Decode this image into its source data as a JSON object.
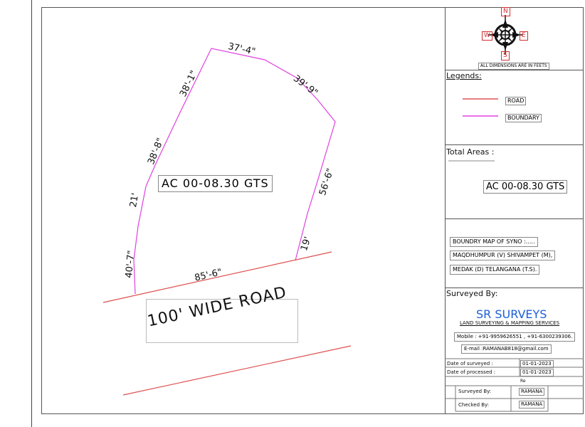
{
  "compass": {
    "north": "N",
    "south": "S",
    "east": "E",
    "west": "W",
    "note": "ALL DIMENSIONS ARE IN FEETS"
  },
  "legend": {
    "title": "Legends:",
    "items": [
      {
        "label": "ROAD",
        "color": "#e05050"
      },
      {
        "label": "BOUNDARY",
        "color": "#e040e0"
      }
    ]
  },
  "total_areas": {
    "title": "Total Areas :",
    "value": "AC 00-08.30 GTS"
  },
  "survey_info": {
    "lines": [
      "BOUNDRY MAP OF SYNO :.....",
      "MAQDHUMPUR (V) SHIVAMPET (M),",
      "MEDAK (D) TELANGANA (T.S)."
    ]
  },
  "surveyor": {
    "title": "Surveyed By:",
    "company": "SR SURVEYS",
    "tagline": "LAND SURVEYING & MAPPING SERVICES",
    "mobile": "Mobile : +91-9959626551 , +91-6300239306.",
    "email": "E-mail :RAMANAB818@gmail.com"
  },
  "details": [
    {
      "label": "Date of surveyed :",
      "value": "01-01-2023"
    },
    {
      "label": "Date of processed :",
      "value": "01-01-2023"
    },
    {
      "label": "",
      "value": "Re"
    },
    {
      "label": "Surveyed By:",
      "value": "RAMANA"
    },
    {
      "label": "Checked By:",
      "value": "RAMANA"
    }
  ],
  "plot": {
    "area_label": "AC 00-08.30 GTS",
    "road_label": "100' WIDE ROAD",
    "dimensions": [
      "37'-4\"",
      "39'-9\"",
      "56'-6\"",
      "19'",
      "85'-6\"",
      "40'-7\"",
      "21'",
      "38'-8\"",
      "38'-1\""
    ]
  },
  "colors": {
    "road": "#e05050",
    "boundary": "#e040e0",
    "frame": "#555555"
  }
}
